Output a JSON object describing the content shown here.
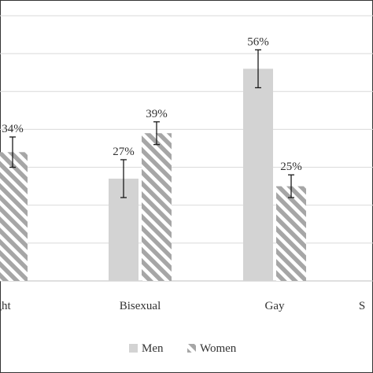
{
  "chart_data": {
    "type": "bar",
    "categories": [
      "ight",
      "Bisexual",
      "Gay",
      "S"
    ],
    "series": [
      {
        "name": "Men",
        "values": [
          null,
          27,
          56,
          null
        ],
        "error": [
          null,
          5,
          5,
          null
        ],
        "color": "#d3d3d3",
        "pattern": "solid"
      },
      {
        "name": "Women",
        "values": [
          34,
          39,
          25,
          null
        ],
        "error": [
          4,
          3,
          3,
          null
        ],
        "color": "#a6a6a6",
        "pattern": "diagonal-hatch"
      }
    ],
    "data_labels": {
      "Men": [
        "",
        "27%",
        "56%",
        ""
      ],
      "Women": [
        "34%",
        "39%",
        "25%",
        ""
      ]
    },
    "ylim": [
      0,
      70
    ],
    "gridlines": true,
    "legend": {
      "position": "bottom-center"
    },
    "title": "",
    "xlabel": "",
    "ylabel": ""
  }
}
